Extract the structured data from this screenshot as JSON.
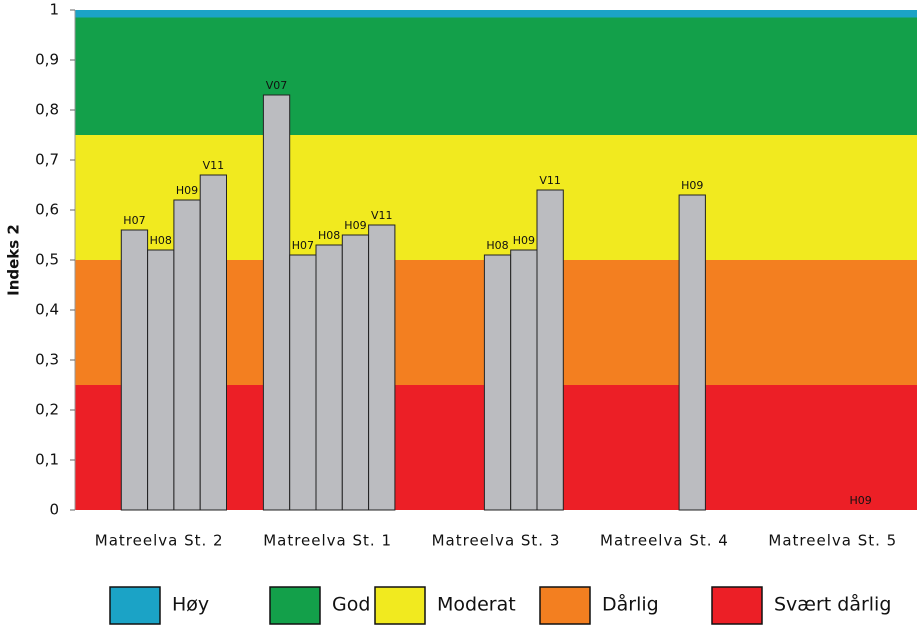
{
  "chart_data": {
    "type": "bar",
    "y_label": "Indeks 2",
    "categories": [
      "Matreelva St. 2",
      "Matreelva St. 1",
      "Matreelva St. 3",
      "Matreelva St. 4",
      "Matreelva St. 5"
    ],
    "bar_color": "#bbbcc0",
    "series": [
      {
        "name": "V07",
        "values": [
          null,
          0.83,
          null,
          null,
          null
        ]
      },
      {
        "name": "H07",
        "values": [
          0.56,
          0.51,
          null,
          null,
          null
        ]
      },
      {
        "name": "H08",
        "values": [
          0.52,
          0.53,
          0.51,
          null,
          null
        ]
      },
      {
        "name": "H09",
        "values": [
          0.62,
          0.55,
          0.52,
          0.63,
          0
        ]
      },
      {
        "name": "V11",
        "values": [
          0.67,
          0.57,
          0.64,
          null,
          null
        ]
      }
    ],
    "bands": [
      {
        "name": "Høy",
        "color": "#1ba3c6",
        "from": 0.985,
        "to": 1
      },
      {
        "name": "God",
        "color": "#13a04a",
        "from": 0.75,
        "to": 0.985
      },
      {
        "name": "Moderat",
        "color": "#f1ea1f",
        "from": 0.5,
        "to": 0.75
      },
      {
        "name": "Dårlig",
        "color": "#f37f20",
        "from": 0.25,
        "to": 0.5
      },
      {
        "name": "Svært dårlig",
        "color": "#ec1f26",
        "from": 0,
        "to": 0.25
      }
    ],
    "ylim": [
      0,
      1
    ],
    "yticks": [
      0,
      {
        "value": 0.1,
        "label": "0,1"
      },
      {
        "value": 0.2,
        "label": "0,2"
      },
      {
        "value": 0.3,
        "label": "0,3"
      },
      {
        "value": 0.4,
        "label": "0,4"
      },
      {
        "value": 0.5,
        "label": "0,5"
      },
      {
        "value": 0.6,
        "label": "0,6"
      },
      {
        "value": 0.7,
        "label": "0,7"
      },
      {
        "value": 0.8,
        "label": "0,8"
      },
      {
        "value": 0.9,
        "label": "0,9"
      },
      1
    ]
  }
}
